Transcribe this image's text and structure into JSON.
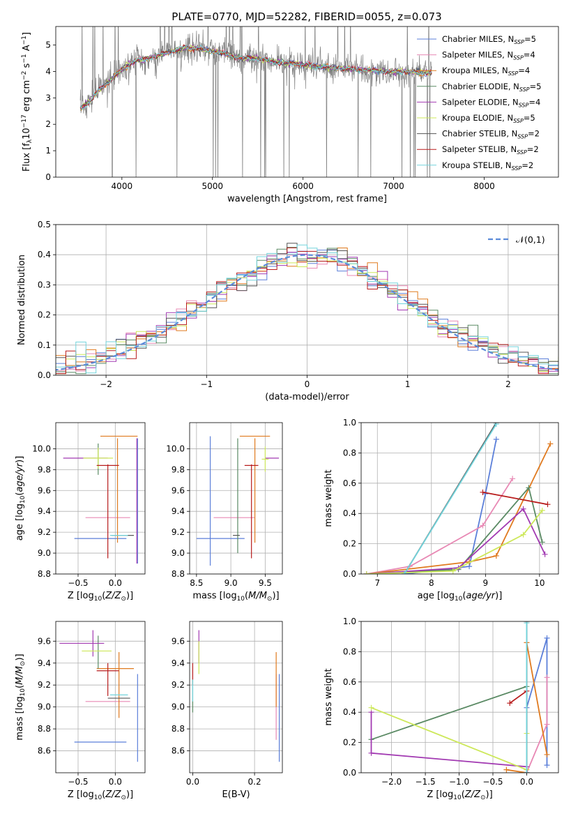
{
  "figure_title": "PLATE=0770, MJD=52282, FIBERID=0055, z=0.073",
  "colors": {
    "Chabrier MILES": "#5b7fd9",
    "Salpeter MILES": "#e888b4",
    "Kroupa MILES": "#e07a1f",
    "Chabrier ELODIE": "#5a8a64",
    "Salpeter ELODIE": "#a23ab2",
    "Kroupa ELODIE": "#cde85a",
    "Chabrier STELIB": "#555555",
    "Salpeter STELIB": "#b81c1c",
    "Kroupa STELIB": "#72d4dc",
    "data": "#808080"
  },
  "chart_data": [
    {
      "id": "spectrum",
      "type": "line",
      "xlabel": "wavelength [Angstrom, rest frame]",
      "ylabel": "Flux [f_λ10^-17 erg cm^-2 s^-1 A^-1]",
      "xlim": [
        3270,
        8820
      ],
      "ylim": [
        0,
        5.7
      ],
      "xticks": [
        4000,
        5000,
        6000,
        7000,
        8000
      ],
      "yticks": [
        0,
        1,
        2,
        3,
        4,
        5
      ],
      "legend_position": "right",
      "legend": [
        {
          "name": "Chabrier MILES",
          "nssp": 5
        },
        {
          "name": "Salpeter MILES",
          "nssp": 4
        },
        {
          "name": "Kroupa MILES",
          "nssp": 4
        },
        {
          "name": "Chabrier ELODIE",
          "nssp": 5
        },
        {
          "name": "Salpeter ELODIE",
          "nssp": 4
        },
        {
          "name": "Kroupa ELODIE",
          "nssp": 5
        },
        {
          "name": "Chabrier STELIB",
          "nssp": 2
        },
        {
          "name": "Salpeter STELIB",
          "nssp": 2
        },
        {
          "name": "Kroupa STELIB",
          "nssp": 2
        }
      ],
      "continuum": {
        "x": [
          3550,
          3650,
          3750,
          3850,
          3950,
          4050,
          4150,
          4300,
          4500,
          4700,
          4900,
          5100,
          5300,
          5500,
          5700,
          5900,
          6100,
          6300,
          6500,
          6700,
          6900,
          7100,
          7300,
          7400
        ],
        "y": [
          2.6,
          2.9,
          3.3,
          3.6,
          3.9,
          4.2,
          4.4,
          4.5,
          4.7,
          4.9,
          4.85,
          4.7,
          4.5,
          4.5,
          4.35,
          4.3,
          4.2,
          4.15,
          4.1,
          4.05,
          4.0,
          4.0,
          3.95,
          3.95
        ]
      }
    },
    {
      "id": "residuals",
      "type": "line",
      "xlabel": "(data-model)/error",
      "ylabel": "Normed distribution",
      "xlim": [
        -2.5,
        2.5
      ],
      "ylim": [
        0,
        0.5
      ],
      "xticks": [
        -2,
        -1,
        0,
        1,
        2
      ],
      "yticks": [
        0.0,
        0.1,
        0.2,
        0.3,
        0.4,
        0.5
      ],
      "legend_position": "top-right",
      "legend_label": "𝒩(0,1)",
      "gaussian": {
        "mean": 0,
        "sigma": 1
      }
    },
    {
      "id": "age_vs_Z",
      "type": "scatter",
      "xlabel": "Z [log10(Z/Z⊙)]",
      "ylabel": "age  [log10(age/yr)]",
      "xlim": [
        -0.8,
        0.4
      ],
      "ylim": [
        8.8,
        10.25
      ],
      "xticks": [
        -0.5,
        0.0
      ],
      "yticks": [
        8.8,
        9.0,
        9.2,
        9.4,
        9.6,
        9.8,
        10.0
      ],
      "points": [
        {
          "series": "Chabrier MILES",
          "x": -0.2,
          "xerr": 0.35,
          "y": 9.14,
          "yerr": 0.0
        },
        {
          "series": "Chabrier MILES",
          "x": 0.3,
          "xerr": 0.0,
          "y": 9.5,
          "yerr": 0.6
        },
        {
          "series": "Salpeter MILES",
          "x": -0.1,
          "xerr": 0.3,
          "y": 9.34,
          "yerr": 0.0
        },
        {
          "series": "Kroupa MILES",
          "x": 0.03,
          "xerr": 0.0,
          "y": 9.6,
          "yerr": 0.5
        },
        {
          "series": "Kroupa MILES",
          "x": 0.05,
          "xerr": 0.25,
          "y": 10.12,
          "yerr": 0.0
        },
        {
          "series": "Chabrier ELODIE",
          "x": -0.23,
          "xerr": 0.0,
          "y": 9.9,
          "yerr": 0.15
        },
        {
          "series": "Salpeter ELODIE",
          "x": -0.4,
          "xerr": 0.3,
          "y": 9.91,
          "yerr": 0.0
        },
        {
          "series": "Salpeter ELODIE",
          "x": 0.29,
          "xerr": 0.0,
          "y": 9.5,
          "yerr": 0.6
        },
        {
          "series": "Kroupa ELODIE",
          "x": -0.23,
          "xerr": 0.2,
          "y": 9.91,
          "yerr": 0.1
        },
        {
          "series": "Chabrier STELIB",
          "x": 0.1,
          "xerr": 0.15,
          "y": 9.17,
          "yerr": 0.0
        },
        {
          "series": "Salpeter STELIB",
          "x": -0.1,
          "xerr": 0.15,
          "y": 9.84,
          "yerr": 0.0
        },
        {
          "series": "Salpeter STELIB",
          "x": -0.1,
          "xerr": 0.0,
          "y": 9.4,
          "yerr": 0.45
        },
        {
          "series": "Kroupa STELIB",
          "x": 0.05,
          "xerr": 0.12,
          "y": 9.17,
          "yerr": 0.0
        }
      ]
    },
    {
      "id": "age_vs_mass",
      "type": "scatter",
      "xlabel": "mass [log10(M/M⊙)]",
      "ylabel": "",
      "xlim": [
        8.4,
        9.75
      ],
      "ylim": [
        8.8,
        10.25
      ],
      "xticks": [
        8.5,
        9.0,
        9.5
      ],
      "yticks": [
        8.8,
        9.0,
        9.2,
        9.4,
        9.6,
        9.8,
        10.0
      ],
      "points": [
        {
          "series": "Chabrier MILES",
          "x": 8.7,
          "xerr": 0.0,
          "y": 9.5,
          "yerr": 0.62
        },
        {
          "series": "Chabrier MILES",
          "x": 8.85,
          "xerr": 0.35,
          "y": 9.14,
          "yerr": 0.0
        },
        {
          "series": "Salpeter MILES",
          "x": 9.05,
          "xerr": 0.3,
          "y": 9.34,
          "yerr": 0.0
        },
        {
          "series": "Kroupa MILES",
          "x": 9.35,
          "xerr": 0.0,
          "y": 9.6,
          "yerr": 0.5
        },
        {
          "series": "Kroupa MILES",
          "x": 9.35,
          "xerr": 0.22,
          "y": 10.12,
          "yerr": 0.0
        },
        {
          "series": "Chabrier ELODIE",
          "x": 9.1,
          "xerr": 0.0,
          "y": 9.55,
          "yerr": 0.55
        },
        {
          "series": "Salpeter ELODIE",
          "x": 9.6,
          "xerr": 0.1,
          "y": 9.91,
          "yerr": 0.0
        },
        {
          "series": "Kroupa ELODIE",
          "x": 9.5,
          "xerr": 0.05,
          "y": 9.9,
          "yerr": 0.12
        },
        {
          "series": "Chabrier STELIB",
          "x": 9.08,
          "xerr": 0.05,
          "y": 9.17,
          "yerr": 0.0
        },
        {
          "series": "Salpeter STELIB",
          "x": 9.3,
          "xerr": 0.0,
          "y": 9.4,
          "yerr": 0.45
        },
        {
          "series": "Salpeter STELIB",
          "x": 9.3,
          "xerr": 0.1,
          "y": 9.84,
          "yerr": 0.0
        }
      ]
    },
    {
      "id": "weight_vs_age",
      "type": "line",
      "xlabel": "age  [log10(age/yr)]",
      "ylabel": "mass weight",
      "xlim": [
        6.7,
        10.35
      ],
      "ylim": [
        0,
        1.0
      ],
      "xticks": [
        7,
        8,
        9,
        10
      ],
      "yticks": [
        0.0,
        0.2,
        0.4,
        0.6,
        0.8,
        1.0
      ],
      "series": [
        {
          "name": "Chabrier MILES",
          "x": [
            7.5,
            8.7,
            9.0,
            9.2
          ],
          "y": [
            0.0,
            0.05,
            0.53,
            0.89
          ]
        },
        {
          "name": "Salpeter MILES",
          "x": [
            6.8,
            7.6,
            8.95,
            9.5
          ],
          "y": [
            0.0,
            0.05,
            0.32,
            0.63
          ]
        },
        {
          "name": "Kroupa MILES",
          "x": [
            6.8,
            8.7,
            9.2,
            10.2
          ],
          "y": [
            0.0,
            0.08,
            0.12,
            0.86
          ]
        },
        {
          "name": "Chabrier ELODIE",
          "x": [
            6.8,
            8.5,
            9.8,
            10.05
          ],
          "y": [
            0.0,
            0.03,
            0.57,
            0.21
          ]
        },
        {
          "name": "Salpeter ELODIE",
          "x": [
            6.8,
            8.5,
            9.7,
            10.1
          ],
          "y": [
            0.0,
            0.04,
            0.43,
            0.13
          ]
        },
        {
          "name": "Kroupa ELODIE",
          "x": [
            6.8,
            8.4,
            9.7,
            10.05
          ],
          "y": [
            0.0,
            0.02,
            0.26,
            0.42
          ]
        },
        {
          "name": "Chabrier STELIB",
          "x": [
            7.5,
            9.2
          ],
          "y": [
            0.0,
            1.0
          ]
        },
        {
          "name": "Salpeter STELIB",
          "x": [
            8.95,
            10.15
          ],
          "y": [
            0.54,
            0.46
          ]
        },
        {
          "name": "Kroupa STELIB",
          "x": [
            7.5,
            9.2
          ],
          "y": [
            0.0,
            0.99
          ]
        }
      ]
    },
    {
      "id": "mass_vs_Z",
      "type": "scatter",
      "xlabel": "Z [log10(Z/Z⊙)]",
      "ylabel": "mass [log10(M/M⊙)]",
      "xlim": [
        -0.8,
        0.4
      ],
      "ylim": [
        8.4,
        9.78
      ],
      "xticks": [
        -0.5,
        0.0
      ],
      "yticks": [
        8.6,
        8.8,
        9.0,
        9.2,
        9.4,
        9.6
      ],
      "points": [
        {
          "series": "Chabrier MILES",
          "x": -0.2,
          "xerr": 0.35,
          "y": 8.68,
          "yerr": 0.0
        },
        {
          "series": "Chabrier MILES",
          "x": 0.3,
          "xerr": 0.0,
          "y": 8.9,
          "yerr": 0.4
        },
        {
          "series": "Salpeter MILES",
          "x": -0.1,
          "xerr": 0.3,
          "y": 9.05,
          "yerr": 0.0
        },
        {
          "series": "Kroupa MILES",
          "x": 0.05,
          "xerr": 0.0,
          "y": 9.2,
          "yerr": 0.3
        },
        {
          "series": "Kroupa MILES",
          "x": 0.0,
          "xerr": 0.25,
          "y": 9.35,
          "yerr": 0.0
        },
        {
          "series": "Chabrier ELODIE",
          "x": -0.23,
          "xerr": 0.0,
          "y": 9.5,
          "yerr": 0.15
        },
        {
          "series": "Salpeter ELODIE",
          "x": -0.45,
          "xerr": 0.3,
          "y": 9.58,
          "yerr": 0.0
        },
        {
          "series": "Salpeter ELODIE",
          "x": -0.3,
          "xerr": 0.0,
          "y": 9.58,
          "yerr": 0.12
        },
        {
          "series": "Kroupa ELODIE",
          "x": -0.25,
          "xerr": 0.2,
          "y": 9.51,
          "yerr": 0.0
        },
        {
          "series": "Chabrier STELIB",
          "x": 0.05,
          "xerr": 0.15,
          "y": 9.08,
          "yerr": 0.0
        },
        {
          "series": "Salpeter STELIB",
          "x": -0.1,
          "xerr": 0.15,
          "y": 9.33,
          "yerr": 0.0
        },
        {
          "series": "Salpeter STELIB",
          "x": -0.1,
          "xerr": 0.0,
          "y": 9.25,
          "yerr": 0.15
        },
        {
          "series": "Kroupa STELIB",
          "x": 0.05,
          "xerr": 0.12,
          "y": 9.11,
          "yerr": 0.0
        }
      ]
    },
    {
      "id": "mass_vs_ebv",
      "type": "scatter",
      "xlabel": "E(B-V)",
      "ylabel": "",
      "xlim": [
        -0.01,
        0.29
      ],
      "ylim": [
        8.4,
        9.78
      ],
      "xticks": [
        0.0,
        0.2
      ],
      "yticks": [
        8.6,
        8.8,
        9.0,
        9.2,
        9.4,
        9.6
      ],
      "points": [
        {
          "series": "Chabrier MILES",
          "x": 0.28,
          "xerr": 0.0,
          "y": 8.9,
          "yerr": 0.4
        },
        {
          "series": "Salpeter MILES",
          "x": 0.27,
          "xerr": 0.0,
          "y": 9.0,
          "yerr": 0.3
        },
        {
          "series": "Kroupa MILES",
          "x": 0.27,
          "xerr": 0.0,
          "y": 9.25,
          "yerr": 0.25
        },
        {
          "series": "Chabrier ELODIE",
          "x": 0.0,
          "xerr": 0.0,
          "y": 9.1,
          "yerr": 0.15
        },
        {
          "series": "Salpeter ELODIE",
          "x": 0.02,
          "xerr": 0.0,
          "y": 9.55,
          "yerr": 0.15
        },
        {
          "series": "Kroupa ELODIE",
          "x": 0.02,
          "xerr": 0.0,
          "y": 9.45,
          "yerr": 0.15
        },
        {
          "series": "Salpeter STELIB",
          "x": 0.0,
          "xerr": 0.0,
          "y": 9.3,
          "yerr": 0.1
        },
        {
          "series": "Kroupa STELIB",
          "x": 0.0,
          "xerr": 0.0,
          "y": 9.15,
          "yerr": 0.1
        }
      ]
    },
    {
      "id": "weight_vs_Z",
      "type": "line",
      "xlabel": "Z [log10(Z/Z⊙)]",
      "ylabel": "mass weight",
      "xlim": [
        -2.45,
        0.47
      ],
      "ylim": [
        0,
        1.0
      ],
      "xticks": [
        -2.0,
        -1.5,
        -1.0,
        -0.5,
        0.0
      ],
      "yticks": [
        0.0,
        0.2,
        0.4,
        0.6,
        0.8,
        1.0
      ],
      "series": [
        {
          "name": "Chabrier MILES",
          "x": [
            0.0,
            0.0,
            0.3,
            0.3
          ],
          "y": [
            0.0,
            0.43,
            0.89,
            0.05
          ]
        },
        {
          "name": "Salpeter MILES",
          "x": [
            0.0,
            0.3,
            0.3
          ],
          "y": [
            0.0,
            0.32,
            0.63
          ]
        },
        {
          "name": "Kroupa MILES",
          "x": [
            -0.3,
            0.0,
            0.0,
            0.3
          ],
          "y": [
            0.02,
            0.0,
            0.86,
            0.12
          ]
        },
        {
          "name": "Chabrier ELODIE",
          "x": [
            -2.3,
            0.0,
            0.0
          ],
          "y": [
            0.22,
            0.57,
            0.0
          ]
        },
        {
          "name": "Salpeter ELODIE",
          "x": [
            -2.3,
            -2.3,
            0.0,
            0.0
          ],
          "y": [
            0.4,
            0.13,
            0.04,
            0.0
          ]
        },
        {
          "name": "Kroupa ELODIE",
          "x": [
            -2.3,
            0.0,
            0.0
          ],
          "y": [
            0.43,
            0.02,
            0.26
          ]
        },
        {
          "name": "Chabrier STELIB",
          "x": [
            0.0,
            0.0
          ],
          "y": [
            0.0,
            1.0
          ]
        },
        {
          "name": "Salpeter STELIB",
          "x": [
            -0.25,
            0.0
          ],
          "y": [
            0.46,
            0.54
          ]
        },
        {
          "name": "Kroupa STELIB",
          "x": [
            0.0,
            0.0
          ],
          "y": [
            0.0,
            0.99
          ]
        }
      ]
    }
  ]
}
